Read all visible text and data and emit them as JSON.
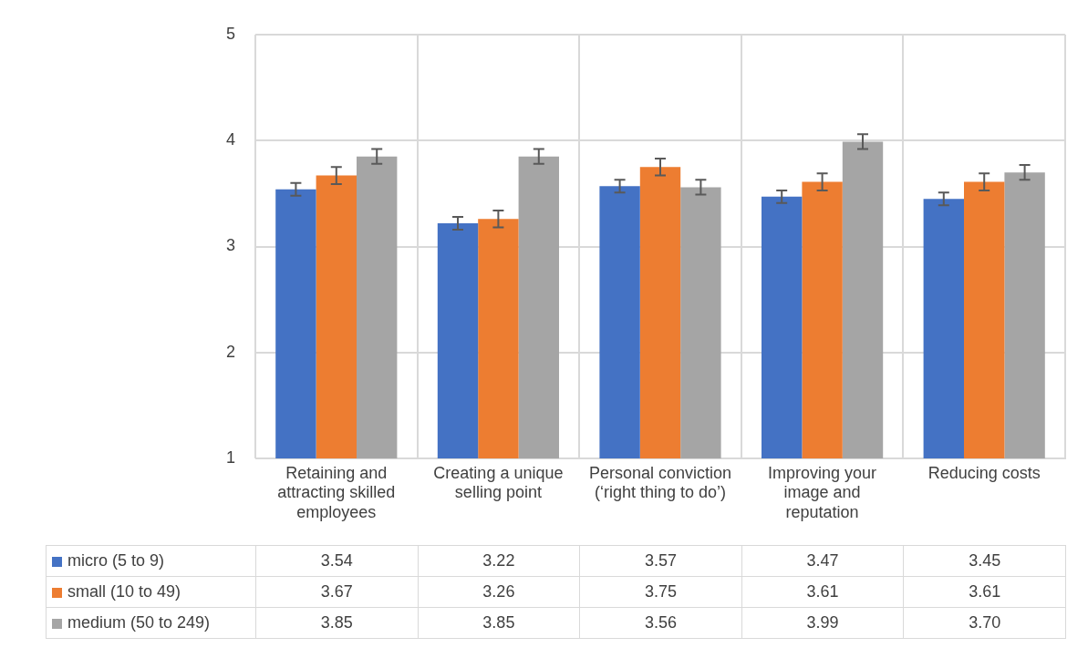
{
  "chart_data": {
    "type": "bar",
    "categories": [
      "Retaining and attracting skilled employees",
      "Creating a unique selling point",
      "Personal conviction (‘right thing to do’)",
      "Improving your image and reputation",
      "Reducing costs"
    ],
    "series": [
      {
        "name": "micro (5 to 9)",
        "color": "#4472c4",
        "values": [
          3.54,
          3.22,
          3.57,
          3.47,
          3.45
        ],
        "value_labels": [
          "3.54",
          "3.22",
          "3.57",
          "3.47",
          "3.45"
        ],
        "errors": [
          0.06,
          0.06,
          0.06,
          0.06,
          0.06
        ]
      },
      {
        "name": "small (10 to 49)",
        "color": "#ed7d31",
        "values": [
          3.67,
          3.26,
          3.75,
          3.61,
          3.61
        ],
        "value_labels": [
          "3.67",
          "3.26",
          "3.75",
          "3.61",
          "3.61"
        ],
        "errors": [
          0.08,
          0.08,
          0.08,
          0.08,
          0.08
        ]
      },
      {
        "name": "medium (50 to 249)",
        "color": "#a5a5a5",
        "values": [
          3.85,
          3.85,
          3.56,
          3.99,
          3.7
        ],
        "value_labels": [
          "3.85",
          "3.85",
          "3.56",
          "3.99",
          "3.70"
        ],
        "errors": [
          0.07,
          0.07,
          0.07,
          0.07,
          0.07
        ]
      }
    ],
    "ylim": [
      1,
      5
    ],
    "yticks": [
      1,
      2,
      3,
      4,
      5
    ],
    "grid": true,
    "legend": "bottom left"
  }
}
